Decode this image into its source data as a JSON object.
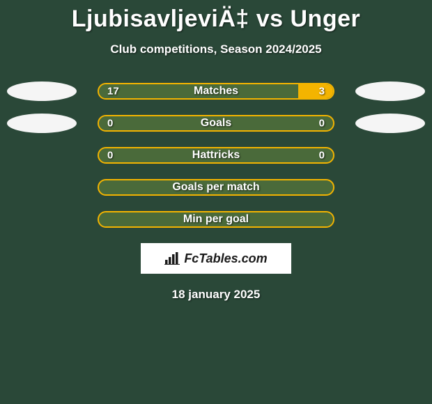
{
  "title": "LjubisavljeviÄ‡ vs Unger",
  "subtitle": "Club competitions, Season 2024/2025",
  "date": "18 january 2025",
  "logo_text": "FcTables.com",
  "colors": {
    "background": "#2a4838",
    "bar_border": "#f4b400",
    "bar_left_fill": "#4a6a3a",
    "bar_right_fill": "#f4b400",
    "text": "#ffffff",
    "oval": "#f5f5f5",
    "logo_bg": "#ffffff",
    "logo_text": "#1a1a1a"
  },
  "rows": [
    {
      "label": "Matches",
      "left": "17",
      "right": "3",
      "left_pct": 85,
      "right_pct": 15,
      "show_values": true,
      "left_oval": true,
      "right_oval": true
    },
    {
      "label": "Goals",
      "left": "0",
      "right": "0",
      "left_pct": 50,
      "right_pct": 0,
      "show_values": true,
      "left_oval": true,
      "right_oval": true
    },
    {
      "label": "Hattricks",
      "left": "0",
      "right": "0",
      "left_pct": 50,
      "right_pct": 0,
      "show_values": true,
      "left_oval": false,
      "right_oval": false
    },
    {
      "label": "Goals per match",
      "left": "",
      "right": "",
      "left_pct": 0,
      "right_pct": 0,
      "show_values": false,
      "left_oval": false,
      "right_oval": false
    },
    {
      "label": "Min per goal",
      "left": "",
      "right": "",
      "left_pct": 100,
      "right_pct": 0,
      "show_values": false,
      "left_oval": false,
      "right_oval": false
    }
  ]
}
